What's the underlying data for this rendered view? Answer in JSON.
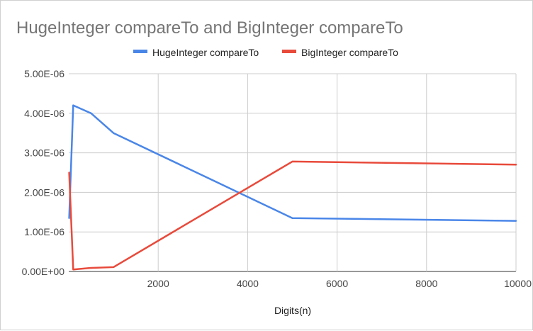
{
  "chart_data": {
    "type": "line",
    "title": "HugeInteger compareTo and BigInteger compareTo",
    "xlabel": "Digits(n)",
    "ylabel": "",
    "xlim": [
      0,
      10000
    ],
    "ylim": [
      0,
      5e-06
    ],
    "x_ticks": [
      2000,
      4000,
      6000,
      8000,
      10000
    ],
    "x_tick_labels": [
      "2000",
      "4000",
      "6000",
      "8000",
      "10000"
    ],
    "y_ticks": [
      0,
      1e-06,
      2e-06,
      3e-06,
      4e-06,
      5e-06
    ],
    "y_tick_labels": [
      "0.00E+00",
      "1.00E-06",
      "2.00E-06",
      "3.00E-06",
      "4.00E-06",
      "5.00E-06"
    ],
    "grid": true,
    "legend_position": "top",
    "series": [
      {
        "name": "HugeInteger compareTo",
        "color": "#4a86e8",
        "x": [
          10,
          100,
          500,
          1000,
          5000,
          10000
        ],
        "y": [
          1.35e-06,
          4.2e-06,
          4e-06,
          3.5e-06,
          1.35e-06,
          1.28e-06
        ]
      },
      {
        "name": "BigInteger compareTo",
        "color": "#e84a3b",
        "x": [
          10,
          100,
          500,
          1000,
          5000,
          10000
        ],
        "y": [
          2.5e-06,
          5e-08,
          9e-08,
          1.1e-07,
          2.78e-06,
          2.7e-06
        ]
      }
    ]
  }
}
